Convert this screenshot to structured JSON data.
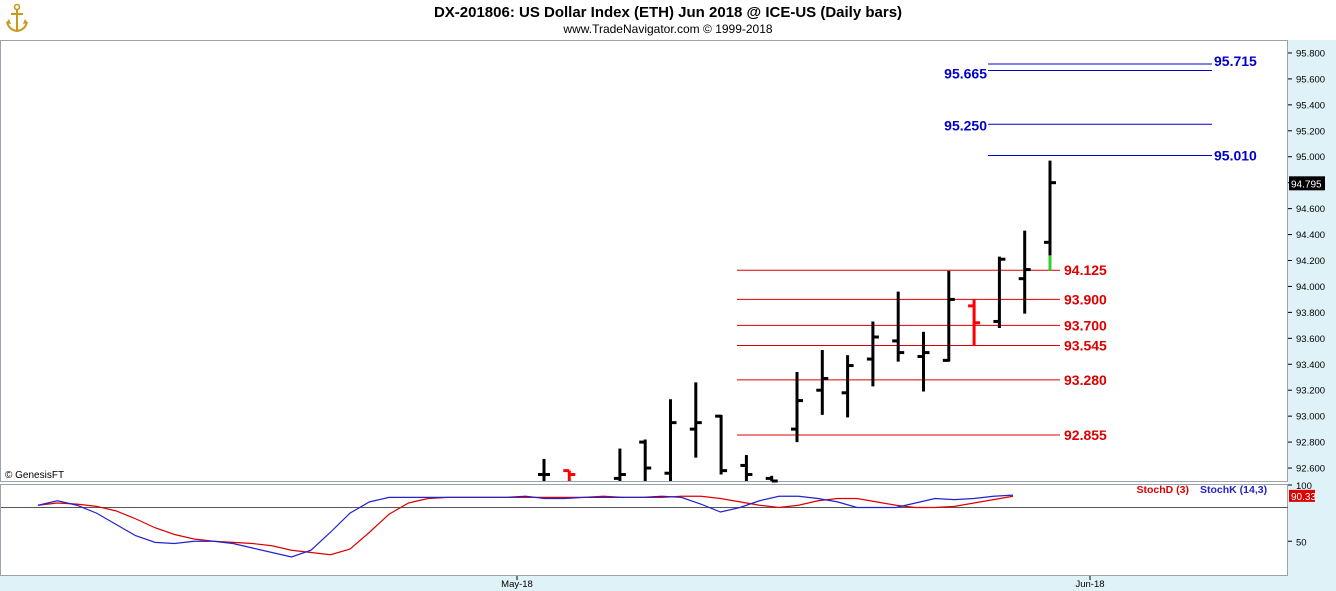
{
  "header": {
    "title": "DX-201806:  US Dollar Index (ETH) Jun 2018 @ ICE-US  (Daily bars)",
    "subtitle": "www.TradeNavigator.com © 1999-2018"
  },
  "logo_icon": "anchor-icon",
  "copyright": "© GenesisFT",
  "colors": {
    "bar": "#000000",
    "down_bar": "#ff0000",
    "up_tick": "#33cc33",
    "resistance": "#0000cc",
    "support": "#dd0000",
    "stoch_k": "#2222cc",
    "stoch_d": "#dd0000",
    "axis_bg": "#ddf0f6"
  },
  "chart_data": [
    {
      "type": "ohlc",
      "title": "DX-201806:  US Dollar Index (ETH) Jun 2018 @ ICE-US  (Daily bars)",
      "ylim": [
        92.5,
        95.9
      ],
      "y_ticks": [
        "92.600",
        "92.800",
        "93.000",
        "93.200",
        "93.400",
        "93.600",
        "93.800",
        "94.000",
        "94.200",
        "94.400",
        "94.600",
        "94.800",
        "95.000",
        "95.200",
        "95.400",
        "95.600",
        "95.800"
      ],
      "x_ticks": [
        "May-18",
        "Jun-18"
      ],
      "last_price": "94.795",
      "bars": [
        {
          "i": 20,
          "o": 92.55,
          "h": 92.67,
          "l": 92.45,
          "c": 92.55
        },
        {
          "i": 21,
          "o": 92.58,
          "h": 92.58,
          "l": 92.45,
          "c": 92.55,
          "down": true
        },
        {
          "i": 23,
          "o": 92.52,
          "h": 92.75,
          "l": 92.45,
          "c": 92.55
        },
        {
          "i": 24,
          "o": 92.8,
          "h": 92.82,
          "l": 92.5,
          "c": 92.6
        },
        {
          "i": 25,
          "o": 92.56,
          "h": 93.13,
          "l": 92.5,
          "c": 92.95
        },
        {
          "i": 26,
          "o": 92.9,
          "h": 93.26,
          "l": 92.68,
          "c": 92.95
        },
        {
          "i": 27,
          "o": 93.0,
          "h": 93.01,
          "l": 92.55,
          "c": 92.58
        },
        {
          "i": 28,
          "o": 92.62,
          "h": 92.7,
          "l": 92.5,
          "c": 92.55
        },
        {
          "i": 29,
          "o": 92.52,
          "h": 92.54,
          "l": 92.45,
          "c": 92.5
        },
        {
          "i": 30,
          "o": 92.9,
          "h": 93.34,
          "l": 92.8,
          "c": 93.12
        },
        {
          "i": 31,
          "o": 93.2,
          "h": 93.51,
          "l": 93.01,
          "c": 93.29
        },
        {
          "i": 32,
          "o": 93.18,
          "h": 93.47,
          "l": 92.99,
          "c": 93.39
        },
        {
          "i": 33,
          "o": 93.44,
          "h": 93.73,
          "l": 93.23,
          "c": 93.61
        },
        {
          "i": 34,
          "o": 93.58,
          "h": 93.96,
          "l": 93.42,
          "c": 93.49
        },
        {
          "i": 35,
          "o": 93.46,
          "h": 93.65,
          "l": 93.19,
          "c": 93.49
        },
        {
          "i": 36,
          "o": 93.43,
          "h": 94.12,
          "l": 93.42,
          "c": 93.9
        },
        {
          "i": 37,
          "o": 93.85,
          "h": 93.9,
          "l": 93.54,
          "c": 93.72,
          "down": true
        },
        {
          "i": 38,
          "o": 93.73,
          "h": 94.23,
          "l": 93.68,
          "c": 94.21
        },
        {
          "i": 39,
          "o": 94.06,
          "h": 94.43,
          "l": 93.79,
          "c": 94.13
        },
        {
          "i": 40,
          "o": 94.34,
          "h": 94.97,
          "l": 94.12,
          "c": 94.8
        }
      ],
      "levels": [
        {
          "label": "95.715",
          "value": 95.715,
          "kind": "resistance"
        },
        {
          "label": "95.665",
          "value": 95.665,
          "kind": "resistance"
        },
        {
          "label": "95.250",
          "value": 95.25,
          "kind": "resistance"
        },
        {
          "label": "95.010",
          "value": 95.01,
          "kind": "resistance"
        },
        {
          "label": "94.125",
          "value": 94.125,
          "kind": "support"
        },
        {
          "label": "93.900",
          "value": 93.9,
          "kind": "support"
        },
        {
          "label": "93.700",
          "value": 93.7,
          "kind": "support"
        },
        {
          "label": "93.545",
          "value": 93.545,
          "kind": "support"
        },
        {
          "label": "93.280",
          "value": 93.28,
          "kind": "support"
        },
        {
          "label": "92.855",
          "value": 92.855,
          "kind": "support"
        }
      ]
    },
    {
      "type": "line",
      "ylim": [
        20,
        100
      ],
      "y_ticks": [
        "100",
        "50"
      ],
      "reference_line": 80,
      "last_value": "90.33",
      "series": [
        {
          "name": "StochD (3)",
          "color": "#dd0000",
          "values": [
            82,
            84,
            83,
            81,
            77,
            70,
            62,
            56,
            52,
            50,
            49,
            48,
            46,
            42,
            40,
            38,
            43,
            58,
            74,
            84,
            88,
            89,
            89,
            89,
            89,
            89,
            89,
            89,
            89,
            90,
            89,
            89,
            89,
            90,
            90,
            88,
            85,
            82,
            80,
            82,
            86,
            88,
            88,
            85,
            82,
            80,
            80,
            81,
            84,
            87,
            90
          ]
        },
        {
          "name": "StochK (14,3)",
          "color": "#2222cc",
          "values": [
            82,
            86,
            82,
            75,
            65,
            55,
            49,
            48,
            50,
            50,
            48,
            44,
            40,
            36,
            42,
            58,
            75,
            85,
            89,
            89,
            89,
            89,
            89,
            89,
            89,
            90,
            88,
            88,
            89,
            89,
            89,
            89,
            90,
            89,
            83,
            76,
            80,
            86,
            90,
            90,
            88,
            85,
            80,
            80,
            80,
            84,
            88,
            87,
            88,
            90,
            91
          ]
        }
      ]
    }
  ]
}
